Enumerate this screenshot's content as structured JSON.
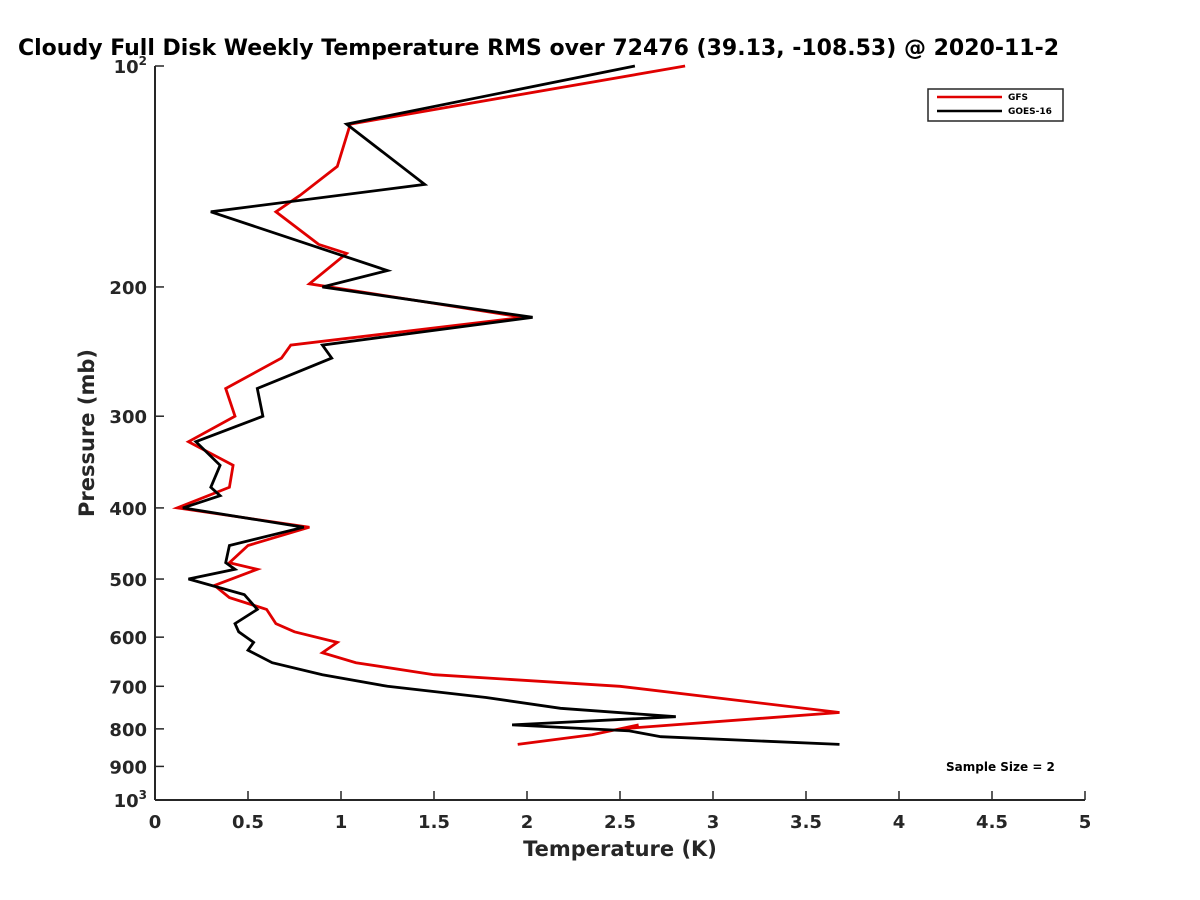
{
  "chart_data": {
    "type": "line",
    "title": "Cloudy Full Disk Weekly Temperature RMS over 72476 (39.13, -108.53) @ 2020-11-2",
    "xlabel": "Temperature (K)",
    "ylabel": "Pressure (mb)",
    "xlim": [
      0,
      5
    ],
    "ylim": [
      1000,
      100
    ],
    "y_scale": "log",
    "y_reversed": true,
    "grid": false,
    "legend_position": "top-right",
    "x_ticks": [
      0,
      0.5,
      1,
      1.5,
      2,
      2.5,
      3,
      3.5,
      4,
      4.5,
      5
    ],
    "x_tick_labels": [
      "0",
      "0.5",
      "1",
      "1.5",
      "2",
      "2.5",
      "3",
      "3.5",
      "4",
      "4.5",
      "5"
    ],
    "y_ticks": [
      100,
      200,
      300,
      400,
      500,
      600,
      700,
      800,
      900,
      1000
    ],
    "y_tick_labels": [
      "10^2",
      "200",
      "300",
      "400",
      "500",
      "600",
      "700",
      "800",
      "900",
      "10^3"
    ],
    "annotation": "Sample Size = 2",
    "series": [
      {
        "name": "GFS",
        "color": "#e00000",
        "points": [
          [
            2.85,
            100
          ],
          [
            1.05,
            120
          ],
          [
            0.98,
            137
          ],
          [
            0.78,
            150
          ],
          [
            0.65,
            158
          ],
          [
            0.88,
            175
          ],
          [
            1.03,
            180
          ],
          [
            0.83,
            198
          ],
          [
            1.98,
            220
          ],
          [
            0.73,
            240
          ],
          [
            0.68,
            250
          ],
          [
            0.38,
            275
          ],
          [
            0.43,
            300
          ],
          [
            0.18,
            325
          ],
          [
            0.42,
            350
          ],
          [
            0.4,
            375
          ],
          [
            0.12,
            400
          ],
          [
            0.83,
            425
          ],
          [
            0.5,
            450
          ],
          [
            0.4,
            475
          ],
          [
            0.55,
            485
          ],
          [
            0.32,
            510
          ],
          [
            0.4,
            530
          ],
          [
            0.6,
            550
          ],
          [
            0.65,
            575
          ],
          [
            0.75,
            590
          ],
          [
            0.98,
            610
          ],
          [
            0.9,
            630
          ],
          [
            1.08,
            650
          ],
          [
            1.5,
            675
          ],
          [
            2.5,
            700
          ],
          [
            3.68,
            760
          ],
          [
            2.5,
            800
          ],
          [
            2.6,
            790
          ],
          [
            2.35,
            815
          ],
          [
            1.95,
            840
          ]
        ]
      },
      {
        "name": "GOES-16",
        "color": "#000000",
        "points": [
          [
            2.58,
            100
          ],
          [
            1.03,
            120
          ],
          [
            1.45,
            145
          ],
          [
            0.3,
            158
          ],
          [
            1.25,
            190
          ],
          [
            0.9,
            200
          ],
          [
            2.03,
            220
          ],
          [
            0.9,
            240
          ],
          [
            0.95,
            250
          ],
          [
            0.55,
            275
          ],
          [
            0.58,
            300
          ],
          [
            0.22,
            325
          ],
          [
            0.35,
            350
          ],
          [
            0.3,
            375
          ],
          [
            0.35,
            385
          ],
          [
            0.15,
            400
          ],
          [
            0.8,
            425
          ],
          [
            0.4,
            450
          ],
          [
            0.38,
            475
          ],
          [
            0.43,
            485
          ],
          [
            0.18,
            500
          ],
          [
            0.48,
            525
          ],
          [
            0.55,
            550
          ],
          [
            0.43,
            575
          ],
          [
            0.45,
            590
          ],
          [
            0.53,
            610
          ],
          [
            0.5,
            625
          ],
          [
            0.63,
            650
          ],
          [
            0.9,
            675
          ],
          [
            1.25,
            700
          ],
          [
            1.78,
            725
          ],
          [
            2.18,
            750
          ],
          [
            2.8,
            770
          ],
          [
            1.92,
            790
          ],
          [
            2.55,
            805
          ],
          [
            2.72,
            820
          ],
          [
            3.68,
            840
          ]
        ]
      }
    ]
  }
}
